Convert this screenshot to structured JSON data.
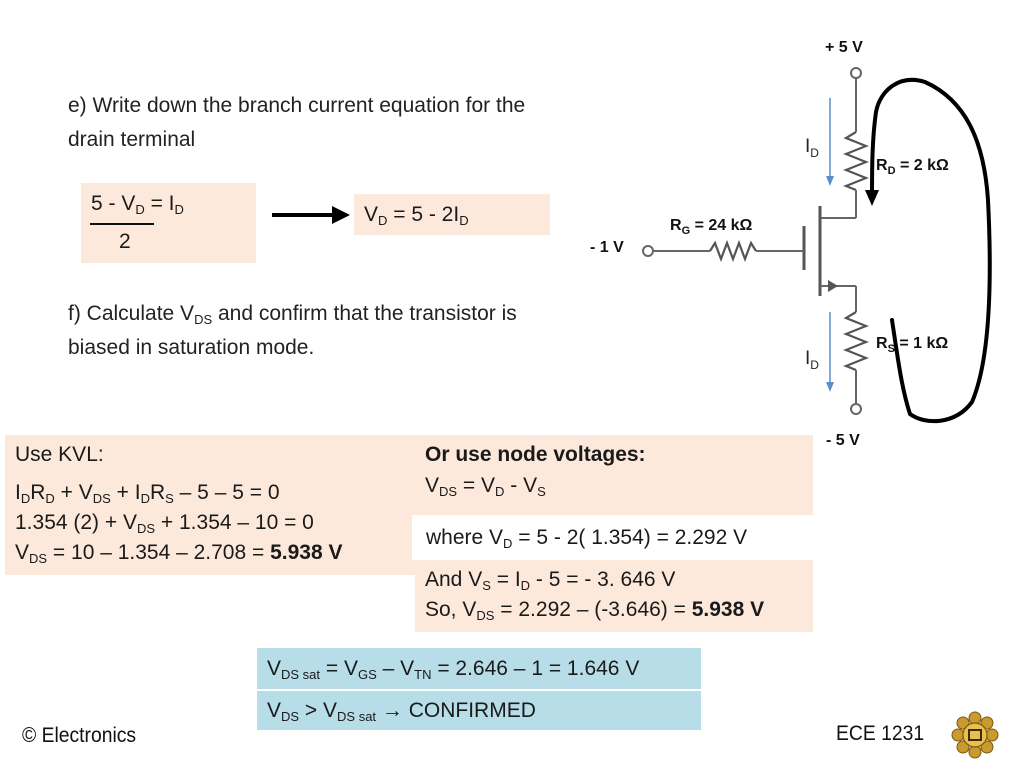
{
  "part_e": {
    "line1": "e) Write down the branch current equation for the",
    "line2": "drain terminal"
  },
  "eq_left": {
    "num_a": "5 - V",
    "num_sub": "D",
    "num_b": " = I",
    "num_sub2": "D",
    "den": "2"
  },
  "eq_right": {
    "a": "V",
    "sub": "D",
    "b": " = 5 - 2I",
    "sub2": "D"
  },
  "part_f": {
    "a": "f)  Calculate V",
    "sub": "DS",
    "b": " and confirm that the transistor is",
    "line2": "biased in saturation mode."
  },
  "kvl": {
    "title": "Use KVL:",
    "l1": {
      "a": "I",
      "s1": "D",
      "b": "R",
      "s2": "D",
      "c": " + V",
      "s3": "DS",
      "d": " +  I",
      "s4": "D",
      "e": "R",
      "s5": "S",
      "f": " – 5 – 5 = 0"
    },
    "l2": {
      "a": "1.354 (2) + V",
      "s1": "DS",
      "b": " + 1.354 – 10 = 0"
    },
    "l3": {
      "a": "V",
      "s1": "DS",
      "b": "  = 10 – 1.354 – 2.708 = ",
      "bold": "5.938 V"
    }
  },
  "node": {
    "title": "Or use node voltages:",
    "l1": {
      "a": "V",
      "s1": "DS",
      "b": " = V",
      "s2": "D",
      "c": " - V",
      "s3": "S"
    },
    "l2": {
      "a": "where V",
      "s1": "D",
      "b": " = 5 -  2( 1.354) = 2.292 V"
    },
    "l3": {
      "a": "And V",
      "s1": "S",
      "b": "  = I",
      "s2": "D",
      "c": "  - 5 = - 3. 646 V"
    },
    "l4": {
      "a": "So, V",
      "s1": "DS",
      "b": " = 2.292 – (-3.646) = ",
      "bold": "5.938 V"
    }
  },
  "sat": {
    "l1": {
      "a": "V",
      "s1": "DS sat",
      "b": " = V",
      "s2": "GS",
      "c": " – V",
      "s3": "TN",
      "d": " = 2.646 – 1 = 1.646 V"
    },
    "l2": {
      "a": "V",
      "s1": "DS",
      "b": " > V",
      "s2": "DS sat",
      "c": "  → CONFIRMED"
    }
  },
  "circuit": {
    "vdd": "+ 5 V",
    "vss": "- 5 V",
    "vg": "- 1 V",
    "rd": {
      "a": "R",
      "s": "D",
      "b": " = 2 kΩ"
    },
    "rg": {
      "a": "R",
      "s": "G",
      "b": " = 24 kΩ"
    },
    "rs": {
      "a": "R",
      "s": "S",
      "b": " = 1 kΩ"
    },
    "id_top": {
      "a": "I",
      "s": "D"
    },
    "id_bot": {
      "a": "I",
      "s": "D"
    }
  },
  "footer": {
    "left": "© Electronics",
    "right": "ECE 1231",
    "logo_icon": "university-crest-icon"
  }
}
